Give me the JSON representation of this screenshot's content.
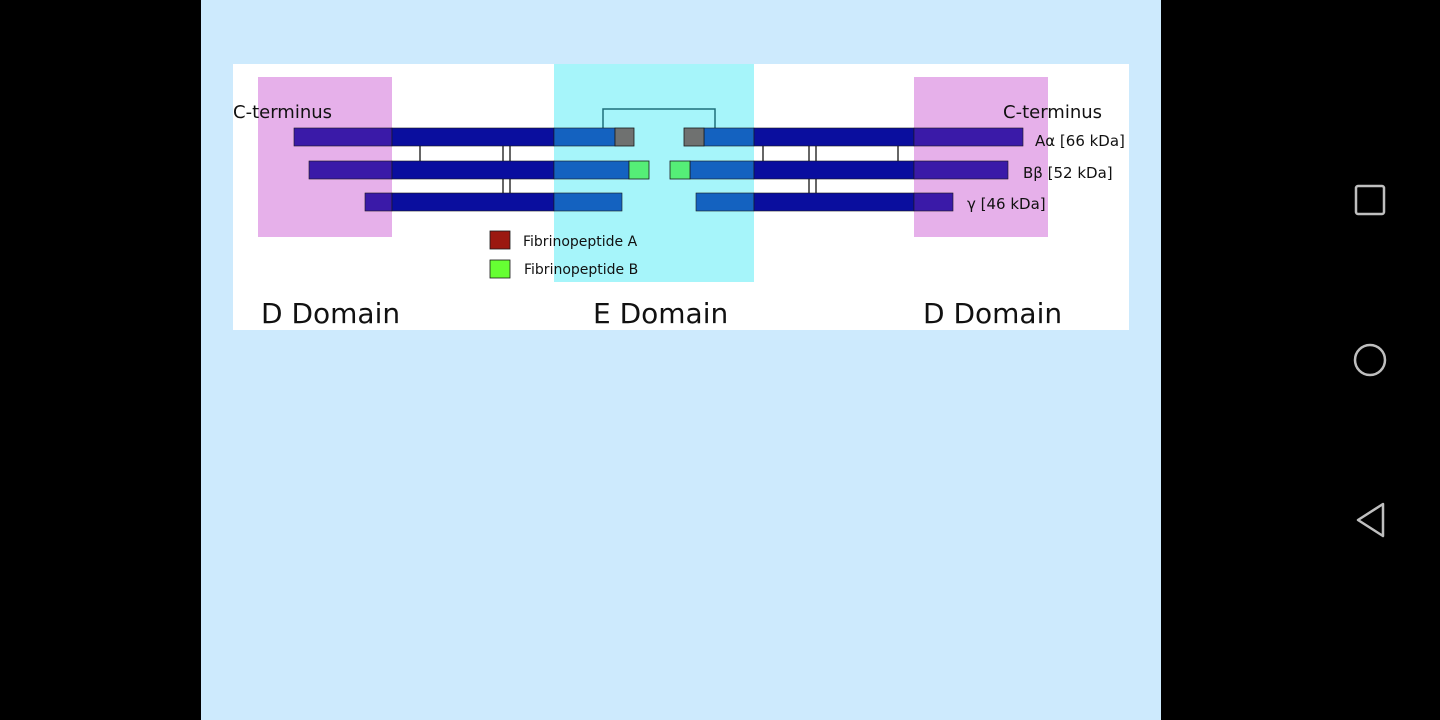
{
  "figure": {
    "labels": {
      "c_terminus_left": "C-terminus",
      "c_terminus_right": "C-terminus",
      "chain_a_alpha": "Aα [66 kDa]",
      "chain_b_beta": "Bβ [52 kDa]",
      "chain_gamma": "γ [46 kDa]",
      "legend_fibrinopeptide_a": "Fibrinopeptide A",
      "legend_fibrinopeptide_b": "Fibrinopeptide B",
      "domain_d_left": "D Domain",
      "domain_e": "E Domain",
      "domain_d_right": "D Domain"
    },
    "colors": {
      "d_region": "#e6b0ea",
      "e_region": "#a6f5fa",
      "chain": "#0a0e9e",
      "chain_in_d": "#3a1aa8",
      "chain_in_e": "#1462c0",
      "fibrinopeptide_a": "#9b1810",
      "fibrinopeptide_a_as_drawn": "#6f7170",
      "fibrinopeptide_b": "#66ff33",
      "fibrinopeptide_b_as_drawn": "#55ee77"
    }
  },
  "nav": {
    "recents_icon": "square-icon",
    "home_icon": "circle-icon",
    "back_icon": "triangle-back-icon"
  }
}
